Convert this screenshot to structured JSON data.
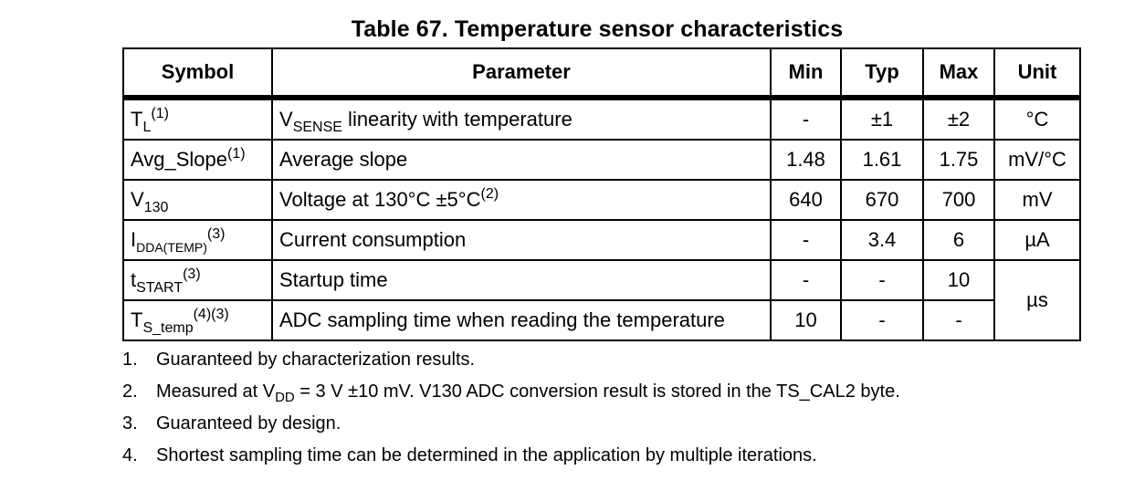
{
  "title": "Table 67. Temperature sensor characteristics",
  "headers": {
    "symbol": "Symbol",
    "parameter": "Parameter",
    "min": "Min",
    "typ": "Typ",
    "max": "Max",
    "unit": "Unit"
  },
  "rows": [
    {
      "symbol_main": "T",
      "symbol_sub": "L",
      "symbol_sup": "(1)",
      "param_main": "V",
      "param_sub": "SENSE",
      "param_rest": " linearity with temperature",
      "param_sup": "",
      "min": "-",
      "typ": "±1",
      "max": "±2",
      "unit": "°C"
    },
    {
      "symbol_main": "Avg_Slope",
      "symbol_sub": "",
      "symbol_sup": "(1)",
      "param_main": "Average slope",
      "param_sub": "",
      "param_rest": "",
      "param_sup": "",
      "min": "1.48",
      "typ": "1.61",
      "max": "1.75",
      "unit": "mV/°C"
    },
    {
      "symbol_main": "V",
      "symbol_sub": "130",
      "symbol_sup": "",
      "param_main": "Voltage at 130°C ±5°C",
      "param_sub": "",
      "param_rest": "",
      "param_sup": "(2)",
      "min": "640",
      "typ": "670",
      "max": "700",
      "unit": "mV"
    },
    {
      "symbol_main": "I",
      "symbol_sub": "DDA(TEMP)",
      "symbol_sup": "(3)",
      "param_main": "Current consumption",
      "param_sub": "",
      "param_rest": "",
      "param_sup": "",
      "min": "-",
      "typ": "3.4",
      "max": "6",
      "unit": "µA"
    },
    {
      "symbol_main": "t",
      "symbol_sub": "START",
      "symbol_sup": "(3)",
      "param_main": "Startup time",
      "param_sub": "",
      "param_rest": "",
      "param_sup": "",
      "min": "-",
      "typ": "-",
      "max": "10",
      "unit": "µs"
    },
    {
      "symbol_main": "T",
      "symbol_sub": "S_temp",
      "symbol_sup": "(4)(3)",
      "param_main": "ADC sampling time when reading the temperature",
      "param_sub": "",
      "param_rest": "",
      "param_sup": "",
      "min": "10",
      "typ": "-",
      "max": "-",
      "unit": ""
    }
  ],
  "notes": [
    {
      "num": "1.",
      "text_a": "Guaranteed by characterization results.",
      "sub": "",
      "text_b": ""
    },
    {
      "num": "2.",
      "text_a": "Measured at V",
      "sub": "DD",
      "text_b": " = 3 V ±10 mV. V130 ADC conversion result is stored in the TS_CAL2 byte."
    },
    {
      "num": "3.",
      "text_a": "Guaranteed by design.",
      "sub": "",
      "text_b": ""
    },
    {
      "num": "4.",
      "text_a": "Shortest sampling time can be determined in the application by multiple iterations.",
      "sub": "",
      "text_b": ""
    }
  ]
}
